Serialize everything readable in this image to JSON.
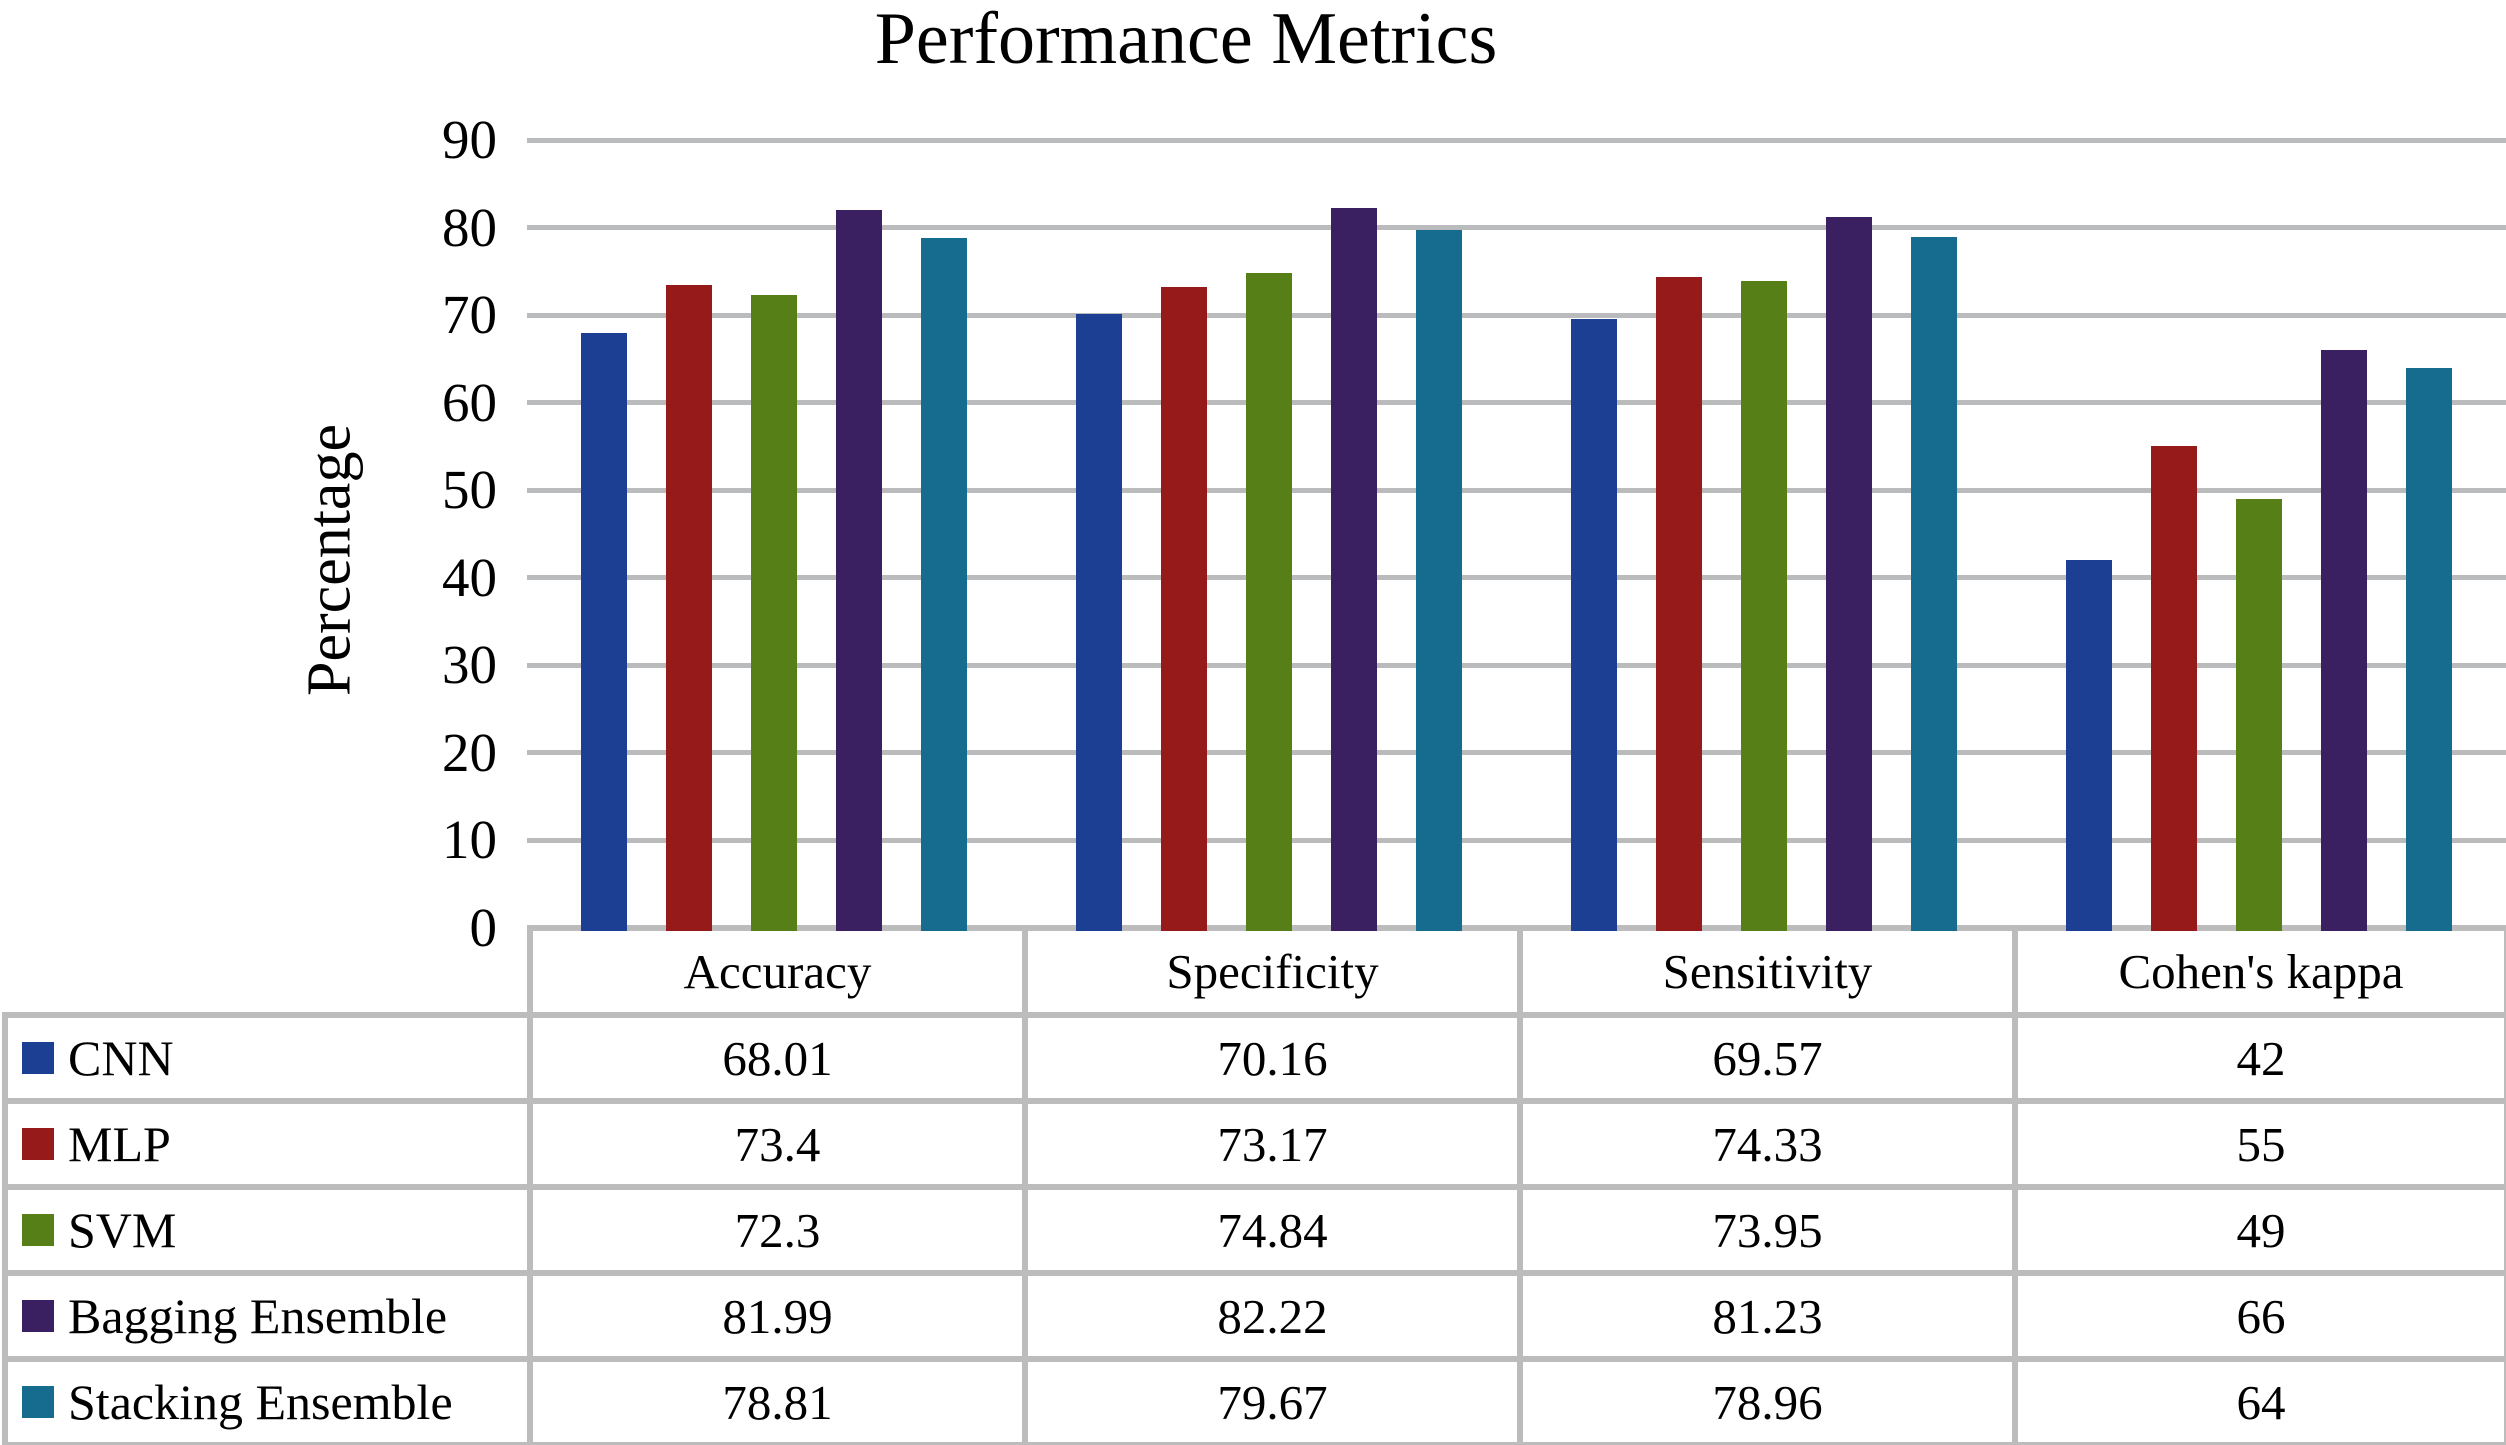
{
  "title": "Performance Metrics",
  "y_axis": {
    "label": "Percentage",
    "ticks": [
      0,
      10,
      20,
      30,
      40,
      50,
      60,
      70,
      80,
      90
    ]
  },
  "colors": {
    "gridline": "#b9bbbd",
    "table_border": "#bcbcbc",
    "text": "#000000",
    "background": "#ffffff"
  },
  "chart_data": {
    "type": "bar",
    "title": "Performance Metrics",
    "xlabel": "",
    "ylabel": "Percentage",
    "ylim": [
      0,
      90
    ],
    "ytick_step": 10,
    "grid": true,
    "legend_position": "table-left",
    "categories": [
      "Accuracy",
      "Specificity",
      "Sensitivity",
      "Cohen's kappa"
    ],
    "series": [
      {
        "name": "CNN",
        "color": "#1c3f93",
        "values": [
          68.01,
          70.16,
          69.57,
          42
        ]
      },
      {
        "name": "MLP",
        "color": "#971a1b",
        "values": [
          73.4,
          73.17,
          74.33,
          55
        ]
      },
      {
        "name": "SVM",
        "color": "#567f17",
        "values": [
          72.3,
          74.84,
          73.95,
          49
        ]
      },
      {
        "name": "Bagging Ensemble",
        "color": "#3a2060",
        "values": [
          81.99,
          82.22,
          81.23,
          66
        ]
      },
      {
        "name": "Stacking Ensemble",
        "color": "#156c8f",
        "values": [
          78.81,
          79.67,
          78.96,
          64
        ]
      }
    ]
  }
}
